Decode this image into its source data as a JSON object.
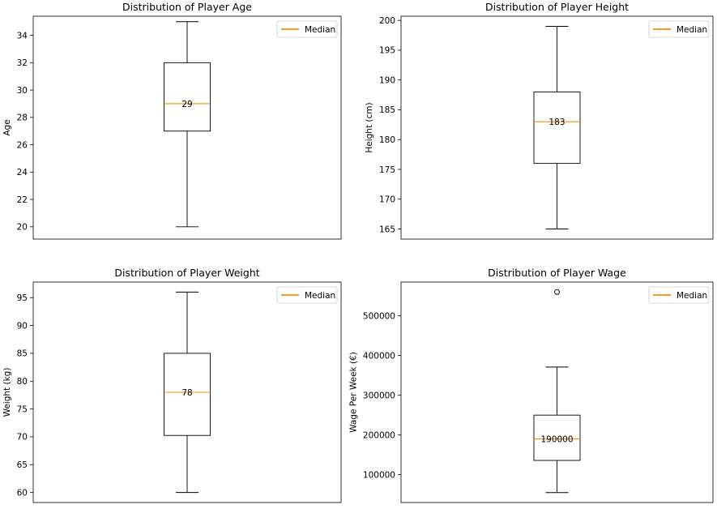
{
  "chart_data": [
    {
      "type": "box",
      "title": "Distribution of Player Age",
      "ylabel": "Age",
      "ylim": [
        19.1,
        35.4
      ],
      "yticks": [
        20,
        22,
        24,
        26,
        28,
        30,
        32,
        34
      ],
      "tick_labels": [
        "20",
        "22",
        "24",
        "26",
        "28",
        "30",
        "32",
        "34"
      ],
      "box": {
        "whisker_low": 20,
        "q1": 27,
        "median": 29,
        "q3": 32,
        "whisker_high": 35,
        "outliers": []
      },
      "median_label": "29",
      "legend": {
        "entries": [
          "Median"
        ],
        "position": "top-right"
      },
      "grid": false
    },
    {
      "type": "box",
      "title": "Distribution of Player Height",
      "ylabel": "Height (cm)",
      "ylim": [
        163.3,
        200.7
      ],
      "yticks": [
        165,
        170,
        175,
        180,
        185,
        190,
        195,
        200
      ],
      "tick_labels": [
        "165",
        "170",
        "175",
        "180",
        "185",
        "190",
        "195",
        "200"
      ],
      "box": {
        "whisker_low": 165,
        "q1": 176,
        "median": 183,
        "q3": 188,
        "whisker_high": 199,
        "outliers": []
      },
      "median_label": "183",
      "legend": {
        "entries": [
          "Median"
        ],
        "position": "top-right"
      },
      "grid": false
    },
    {
      "type": "box",
      "title": "Distribution of Player Weight",
      "ylabel": "Weight (kg)",
      "ylim": [
        58.2,
        97.8
      ],
      "yticks": [
        60,
        65,
        70,
        75,
        80,
        85,
        90,
        95
      ],
      "tick_labels": [
        "60",
        "65",
        "70",
        "75",
        "80",
        "85",
        "90",
        "95"
      ],
      "box": {
        "whisker_low": 60,
        "q1": 70.25,
        "median": 78,
        "q3": 85,
        "whisker_high": 96,
        "outliers": []
      },
      "median_label": "78",
      "legend": {
        "entries": [
          "Median"
        ],
        "position": "top-right"
      },
      "grid": false
    },
    {
      "type": "box",
      "title": "Distribution of Player Wage",
      "ylabel": "Wage Per Week (€)",
      "ylim": [
        30000,
        585000
      ],
      "yticks": [
        100000,
        200000,
        300000,
        400000,
        500000
      ],
      "tick_labels": [
        "100000",
        "200000",
        "300000",
        "400000",
        "500000"
      ],
      "box": {
        "whisker_low": 55000,
        "q1": 136000,
        "median": 190000,
        "q3": 250000,
        "whisker_high": 371000,
        "outliers": [
          560000
        ]
      },
      "median_label": "190000",
      "legend": {
        "entries": [
          "Median"
        ],
        "position": "top-right"
      },
      "grid": false
    }
  ],
  "colors": {
    "median": "#ff8c00",
    "legend_line": "#ff8c00",
    "box": "#000000",
    "axes": "#000000",
    "legend_border": "#cccccc"
  }
}
